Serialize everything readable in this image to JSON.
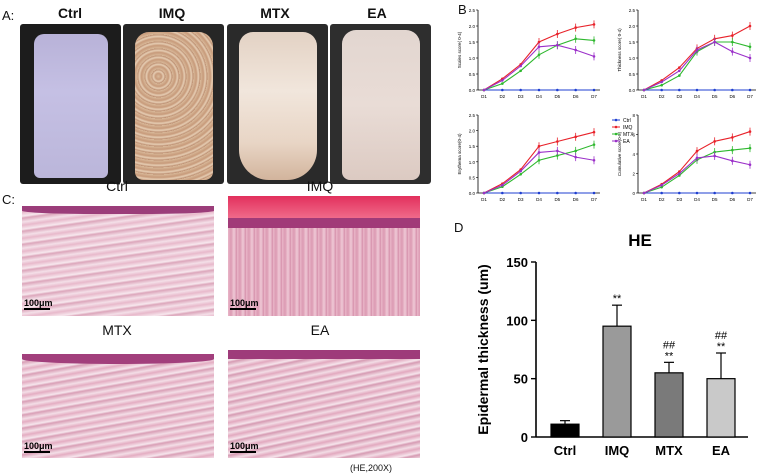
{
  "panels": {
    "a_letter": "A:",
    "b_letter": "B",
    "c_letter": "C:",
    "d_letter": "D"
  },
  "panel_a": {
    "labels": [
      "Ctrl",
      "IMQ",
      "MTX",
      "EA"
    ]
  },
  "panel_c": {
    "labels": [
      "Ctrl",
      "IMQ",
      "MTX",
      "EA"
    ],
    "scale_label": "100μm",
    "footnote": "(HE,200X)"
  },
  "panel_b": {
    "days": [
      "D1",
      "D2",
      "D3",
      "D4",
      "D5",
      "D6",
      "D7"
    ],
    "legend": [
      "Ctrl",
      "IMQ",
      "MTX",
      "EA"
    ],
    "colors": {
      "Ctrl": "#1f3fd0",
      "IMQ": "#e8222a",
      "MTX": "#2eb82e",
      "EA": "#9b30c9"
    },
    "subplots": [
      {
        "ylabel": "Scales score( 0-4)",
        "yticks": [
          "0.0",
          "0.5",
          "1.0",
          "1.5",
          "2.0",
          "2.5"
        ],
        "ylim": [
          0,
          2.5
        ],
        "series": {
          "Ctrl": [
            0,
            0,
            0,
            0,
            0,
            0,
            0
          ],
          "IMQ": [
            0,
            0.35,
            0.8,
            1.5,
            1.75,
            1.95,
            2.05
          ],
          "MTX": [
            0,
            0.2,
            0.6,
            1.1,
            1.4,
            1.6,
            1.55
          ],
          "EA": [
            0,
            0.3,
            0.75,
            1.35,
            1.4,
            1.25,
            1.05
          ]
        }
      },
      {
        "ylabel": "Thickness score( 0-4)",
        "yticks": [
          "0.0",
          "0.5",
          "1.0",
          "1.5",
          "2.0",
          "2.5"
        ],
        "ylim": [
          0,
          2.5
        ],
        "series": {
          "Ctrl": [
            0,
            0,
            0,
            0,
            0,
            0,
            0
          ],
          "IMQ": [
            0,
            0.3,
            0.7,
            1.3,
            1.6,
            1.7,
            2.0
          ],
          "MTX": [
            0,
            0.15,
            0.45,
            1.2,
            1.5,
            1.5,
            1.35
          ],
          "EA": [
            0,
            0.25,
            0.6,
            1.25,
            1.5,
            1.2,
            1.0
          ]
        }
      },
      {
        "ylabel": "Erythema score(0-4)",
        "yticks": [
          "0.0",
          "0.5",
          "1.0",
          "1.5",
          "2.0",
          "2.5"
        ],
        "ylim": [
          0,
          2.5
        ],
        "series": {
          "Ctrl": [
            0,
            0,
            0,
            0,
            0,
            0,
            0
          ],
          "IMQ": [
            0,
            0.3,
            0.75,
            1.5,
            1.65,
            1.8,
            1.95
          ],
          "MTX": [
            0,
            0.2,
            0.6,
            1.05,
            1.2,
            1.35,
            1.55
          ],
          "EA": [
            0,
            0.25,
            0.7,
            1.3,
            1.35,
            1.15,
            1.05
          ]
        }
      },
      {
        "ylabel": "Cumulative score(0-8)",
        "yticks": [
          "0",
          "2",
          "4",
          "6",
          "8"
        ],
        "ylim": [
          0,
          8
        ],
        "series": {
          "Ctrl": [
            0,
            0,
            0,
            0,
            0,
            0,
            0
          ],
          "IMQ": [
            0,
            0.9,
            2.2,
            4.3,
            5.3,
            5.7,
            6.3
          ],
          "MTX": [
            0,
            0.6,
            1.8,
            3.4,
            4.2,
            4.4,
            4.6
          ],
          "EA": [
            0,
            0.8,
            2.0,
            3.6,
            3.8,
            3.3,
            2.9
          ]
        }
      }
    ]
  },
  "chart_data": {
    "type": "bar",
    "title": "HE",
    "ylabel": "Epidermal thickness (um)",
    "categories": [
      "Ctrl",
      "IMQ",
      "MTX",
      "EA"
    ],
    "values": [
      11,
      95,
      55,
      50
    ],
    "errors": [
      3,
      18,
      9,
      22
    ],
    "ylim": [
      0,
      150
    ],
    "yticks": [
      "0",
      "50",
      "100",
      "150"
    ],
    "colors": [
      "#000000",
      "#9a9a9a",
      "#7a7a7a",
      "#c9c9c9"
    ],
    "annotations": [
      {
        "category": "IMQ",
        "marks": [
          "**"
        ]
      },
      {
        "category": "MTX",
        "marks": [
          "##",
          "**"
        ]
      },
      {
        "category": "EA",
        "marks": [
          "##",
          "**"
        ]
      }
    ]
  }
}
